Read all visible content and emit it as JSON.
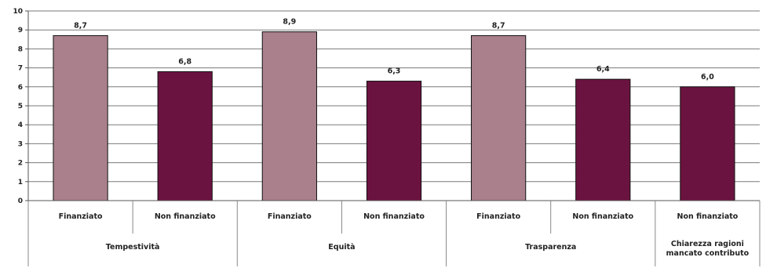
{
  "chart_data": {
    "type": "bar",
    "title": "",
    "xlabel": "",
    "ylabel": "",
    "ylim": [
      0,
      10
    ],
    "yticks": [
      0,
      1,
      2,
      3,
      4,
      5,
      6,
      7,
      8,
      9,
      10
    ],
    "grid": true,
    "colors": {
      "Finanziato": "#a9808c",
      "Non finanziato": "#6b1340"
    },
    "groups": [
      {
        "label": "Tempestività",
        "bars": [
          {
            "category": "Finanziato",
            "value": 8.7,
            "label": "8,7"
          },
          {
            "category": "Non finanziato",
            "value": 6.8,
            "label": "6,8"
          }
        ]
      },
      {
        "label": "Equità",
        "bars": [
          {
            "category": "Finanziato",
            "value": 8.9,
            "label": "8,9"
          },
          {
            "category": "Non finanziato",
            "value": 6.3,
            "label": "6,3"
          }
        ]
      },
      {
        "label": "Trasparenza",
        "bars": [
          {
            "category": "Finanziato",
            "value": 8.7,
            "label": "8,7"
          },
          {
            "category": "Non finanziato",
            "value": 6.4,
            "label": "6,4"
          }
        ]
      },
      {
        "label": "Chiarezza ragioni mancato contributo",
        "label_lines": [
          "Chiarezza ragioni",
          "mancato contributo"
        ],
        "bars": [
          {
            "category": "Non finanziato",
            "value": 6.0,
            "label": "6,0"
          }
        ]
      }
    ]
  }
}
